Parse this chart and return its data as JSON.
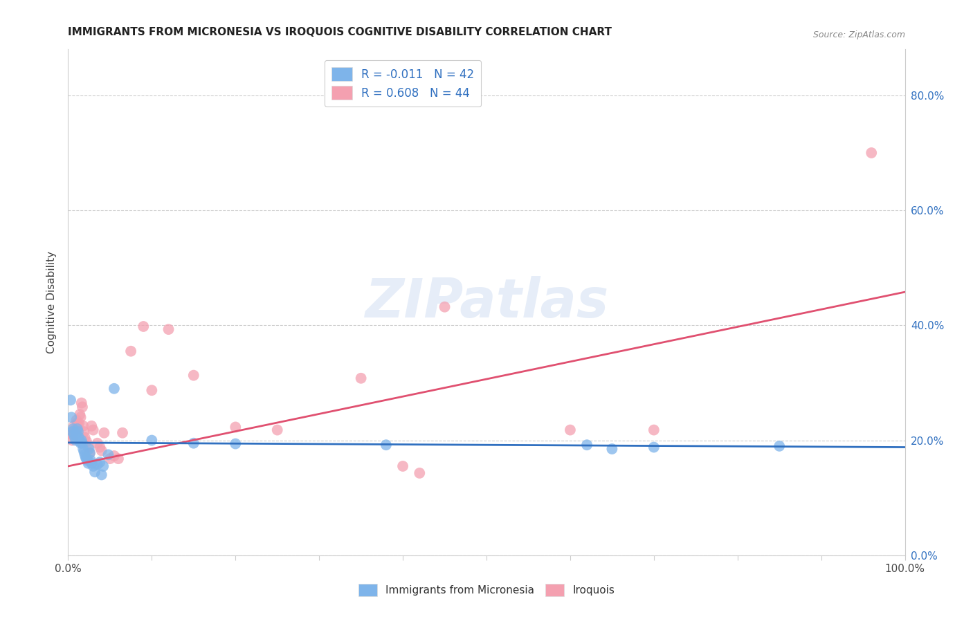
{
  "title": "IMMIGRANTS FROM MICRONESIA VS IROQUOIS COGNITIVE DISABILITY CORRELATION CHART",
  "source": "Source: ZipAtlas.com",
  "ylabel": "Cognitive Disability",
  "xlim": [
    0.0,
    1.0
  ],
  "ylim": [
    0.0,
    0.88
  ],
  "yticks": [
    0.0,
    0.2,
    0.4,
    0.6,
    0.8
  ],
  "yticklabels_right": [
    "0.0%",
    "20.0%",
    "40.0%",
    "60.0%",
    "80.0%"
  ],
  "legend1_label": "R = -0.011   N = 42",
  "legend2_label": "R = 0.608   N = 44",
  "legend_foot1": "Immigrants from Micronesia",
  "legend_foot2": "Iroquois",
  "blue_color": "#7EB4EA",
  "pink_color": "#F4A0B0",
  "blue_line_color": "#3070C0",
  "pink_line_color": "#E05070",
  "watermark": "ZIPatlas",
  "blue_points": [
    [
      0.003,
      0.27
    ],
    [
      0.004,
      0.24
    ],
    [
      0.005,
      0.215
    ],
    [
      0.006,
      0.22
    ],
    [
      0.007,
      0.21
    ],
    [
      0.008,
      0.205
    ],
    [
      0.009,
      0.2
    ],
    [
      0.01,
      0.21
    ],
    [
      0.011,
      0.22
    ],
    [
      0.012,
      0.215
    ],
    [
      0.013,
      0.205
    ],
    [
      0.014,
      0.198
    ],
    [
      0.015,
      0.195
    ],
    [
      0.016,
      0.2
    ],
    [
      0.017,
      0.195
    ],
    [
      0.018,
      0.185
    ],
    [
      0.019,
      0.18
    ],
    [
      0.02,
      0.175
    ],
    [
      0.021,
      0.17
    ],
    [
      0.022,
      0.168
    ],
    [
      0.023,
      0.165
    ],
    [
      0.024,
      0.16
    ],
    [
      0.025,
      0.185
    ],
    [
      0.026,
      0.178
    ],
    [
      0.027,
      0.165
    ],
    [
      0.028,
      0.16
    ],
    [
      0.03,
      0.155
    ],
    [
      0.032,
      0.145
    ],
    [
      0.035,
      0.158
    ],
    [
      0.038,
      0.162
    ],
    [
      0.04,
      0.14
    ],
    [
      0.042,
      0.155
    ],
    [
      0.048,
      0.175
    ],
    [
      0.055,
      0.29
    ],
    [
      0.1,
      0.2
    ],
    [
      0.15,
      0.195
    ],
    [
      0.2,
      0.194
    ],
    [
      0.38,
      0.192
    ],
    [
      0.62,
      0.192
    ],
    [
      0.65,
      0.185
    ],
    [
      0.7,
      0.188
    ],
    [
      0.85,
      0.19
    ]
  ],
  "pink_points": [
    [
      0.004,
      0.21
    ],
    [
      0.005,
      0.2
    ],
    [
      0.006,
      0.215
    ],
    [
      0.007,
      0.225
    ],
    [
      0.008,
      0.21
    ],
    [
      0.009,
      0.22
    ],
    [
      0.01,
      0.235
    ],
    [
      0.011,
      0.23
    ],
    [
      0.012,
      0.22
    ],
    [
      0.013,
      0.23
    ],
    [
      0.014,
      0.245
    ],
    [
      0.015,
      0.24
    ],
    [
      0.016,
      0.265
    ],
    [
      0.017,
      0.258
    ],
    [
      0.018,
      0.225
    ],
    [
      0.019,
      0.215
    ],
    [
      0.02,
      0.205
    ],
    [
      0.022,
      0.198
    ],
    [
      0.024,
      0.188
    ],
    [
      0.026,
      0.178
    ],
    [
      0.028,
      0.225
    ],
    [
      0.03,
      0.218
    ],
    [
      0.035,
      0.195
    ],
    [
      0.038,
      0.188
    ],
    [
      0.04,
      0.182
    ],
    [
      0.043,
      0.213
    ],
    [
      0.05,
      0.168
    ],
    [
      0.055,
      0.173
    ],
    [
      0.06,
      0.168
    ],
    [
      0.065,
      0.213
    ],
    [
      0.075,
      0.355
    ],
    [
      0.09,
      0.398
    ],
    [
      0.1,
      0.287
    ],
    [
      0.12,
      0.393
    ],
    [
      0.15,
      0.313
    ],
    [
      0.2,
      0.223
    ],
    [
      0.25,
      0.218
    ],
    [
      0.35,
      0.308
    ],
    [
      0.4,
      0.155
    ],
    [
      0.42,
      0.143
    ],
    [
      0.45,
      0.432
    ],
    [
      0.6,
      0.218
    ],
    [
      0.7,
      0.218
    ],
    [
      0.96,
      0.7
    ]
  ],
  "blue_line_x": [
    0.0,
    1.0
  ],
  "blue_line_y": [
    0.196,
    0.188
  ],
  "pink_line_x": [
    0.0,
    1.0
  ],
  "pink_line_y": [
    0.155,
    0.458
  ],
  "xtick_positions": [
    0.0,
    0.1,
    0.2,
    0.3,
    0.4,
    0.5,
    0.6,
    0.7,
    0.8,
    0.9,
    1.0
  ],
  "grid_color": "#cccccc",
  "spine_color": "#cccccc"
}
